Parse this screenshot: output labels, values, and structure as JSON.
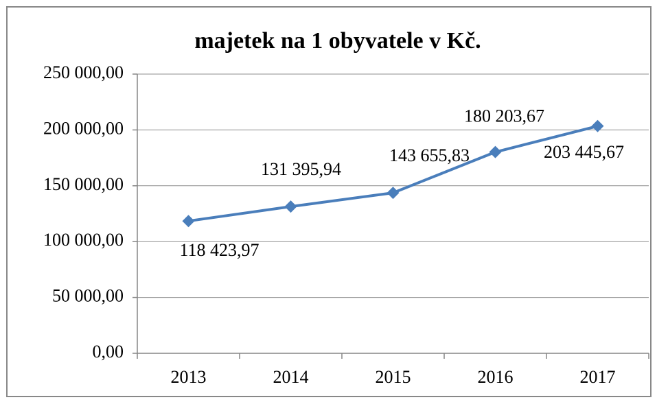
{
  "chart_data": {
    "type": "line",
    "title": "majetek na 1 obyvatele v Kč.",
    "categories": [
      "2013",
      "2014",
      "2015",
      "2016",
      "2017"
    ],
    "series": [
      {
        "name": "majetek na 1 obyvatele v Kč.",
        "color": "#4a7ebb",
        "values": [
          118423.97,
          131395.94,
          143655.83,
          180203.67,
          203445.67
        ],
        "value_labels": [
          "118 423,97",
          "131 395,94",
          "143 655,83",
          "180 203,67",
          "203 445,67"
        ]
      }
    ],
    "ylim": [
      0,
      250000
    ],
    "yticks": [
      {
        "value": 0,
        "label": "0,00"
      },
      {
        "value": 50000,
        "label": "50 000,00"
      },
      {
        "value": 100000,
        "label": "100 000,00"
      },
      {
        "value": 150000,
        "label": "150 000,00"
      },
      {
        "value": 200000,
        "label": "200 000,00"
      },
      {
        "value": 250000,
        "label": "250 000,00"
      }
    ],
    "grid": true
  }
}
